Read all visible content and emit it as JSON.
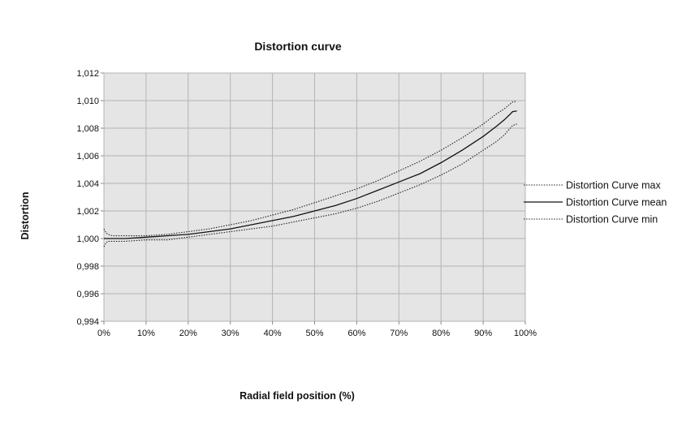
{
  "chart_data": {
    "type": "line",
    "title": "Distortion curve",
    "xlabel": "Radial field position (%)",
    "ylabel": "Distortion",
    "xlim": [
      0,
      100
    ],
    "ylim": [
      0.994,
      1.012
    ],
    "x_ticks": [
      0,
      10,
      20,
      30,
      40,
      50,
      60,
      70,
      80,
      90,
      100
    ],
    "x_tick_labels": [
      "0%",
      "10%",
      "20%",
      "30%",
      "40%",
      "50%",
      "60%",
      "70%",
      "80%",
      "90%",
      "100%"
    ],
    "y_ticks": [
      0.994,
      0.996,
      0.998,
      1.0,
      1.002,
      1.004,
      1.006,
      1.008,
      1.01,
      1.012
    ],
    "y_tick_labels": [
      "0,994",
      "0,996",
      "0,998",
      "1,000",
      "1,002",
      "1,004",
      "1,006",
      "1,008",
      "1,010",
      "1,012"
    ],
    "grid": true,
    "legend_position": "right",
    "plot_background": "#e5e5e5",
    "series": [
      {
        "name": "Distortion Curve max",
        "style": "dotted",
        "color": "#222222",
        "x": [
          0,
          0.5,
          1,
          2,
          5,
          10,
          15,
          20,
          25,
          30,
          35,
          40,
          45,
          50,
          55,
          60,
          65,
          70,
          75,
          80,
          85,
          90,
          93,
          95,
          97,
          98
        ],
        "y": [
          1.0007,
          1.0004,
          1.0003,
          1.0002,
          1.0002,
          1.0002,
          1.0003,
          1.0005,
          1.0007,
          1.001,
          1.0013,
          1.0017,
          1.0021,
          1.0026,
          1.0031,
          1.0036,
          1.0042,
          1.0049,
          1.0056,
          1.0064,
          1.0073,
          1.0083,
          1.009,
          1.0094,
          1.0099,
          1.00995
        ]
      },
      {
        "name": "Distortion Curve mean",
        "style": "solid",
        "color": "#111111",
        "x": [
          0,
          2,
          5,
          10,
          15,
          20,
          25,
          30,
          35,
          40,
          45,
          50,
          55,
          60,
          65,
          70,
          75,
          80,
          85,
          90,
          93,
          95,
          97,
          98
        ],
        "y": [
          1.0,
          1.0,
          1.0,
          1.0001,
          1.0002,
          1.0003,
          1.0005,
          1.0007,
          1.001,
          1.0013,
          1.0016,
          1.002,
          1.0024,
          1.0029,
          1.0035,
          1.0041,
          1.0047,
          1.0055,
          1.0064,
          1.0074,
          1.0081,
          1.0086,
          1.0092,
          1.00925
        ]
      },
      {
        "name": "Distortion Curve min",
        "style": "dotted",
        "color": "#222222",
        "x": [
          0,
          0.5,
          1,
          2,
          5,
          10,
          15,
          20,
          25,
          30,
          35,
          40,
          45,
          50,
          55,
          60,
          65,
          70,
          75,
          80,
          85,
          90,
          93,
          95,
          97,
          98
        ],
        "y": [
          0.9994,
          0.9997,
          0.9998,
          0.9998,
          0.9998,
          0.9999,
          0.9999,
          1.0001,
          1.0003,
          1.0005,
          1.0007,
          1.0009,
          1.0012,
          1.0015,
          1.0018,
          1.0022,
          1.0027,
          1.0033,
          1.0039,
          1.0046,
          1.0054,
          1.0064,
          1.007,
          1.0075,
          1.0082,
          1.0083
        ]
      }
    ]
  }
}
